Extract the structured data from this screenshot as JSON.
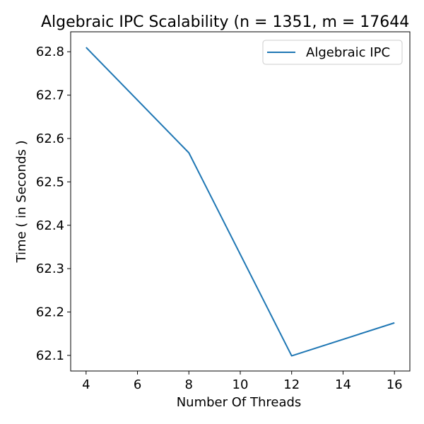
{
  "chart_data": {
    "type": "line",
    "title": "Algebraic IPC Scalability (n = 1351, m = 17644",
    "xlabel": "Number Of Threads",
    "ylabel": "Time ( in Seconds )",
    "x": [
      4,
      8,
      12,
      16
    ],
    "series": [
      {
        "name": "Algebraic IPC",
        "values": [
          62.81,
          62.567,
          62.099,
          62.175
        ],
        "color": "#1f77b4"
      }
    ],
    "xlim": [
      3.4,
      16.6
    ],
    "ylim": [
      62.064,
      62.846
    ],
    "xticks": [
      4,
      6,
      8,
      10,
      12,
      14,
      16
    ],
    "xtick_labels": [
      "4",
      "6",
      "8",
      "10",
      "12",
      "14",
      "16"
    ],
    "yticks": [
      62.1,
      62.2,
      62.3,
      62.4,
      62.5,
      62.6,
      62.7,
      62.8
    ],
    "ytick_labels": [
      "62.1",
      "62.2",
      "62.3",
      "62.4",
      "62.5",
      "62.6",
      "62.7",
      "62.8"
    ],
    "grid": false,
    "legend_position": "top-right"
  }
}
